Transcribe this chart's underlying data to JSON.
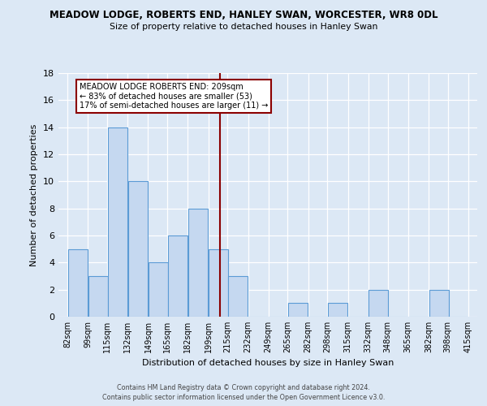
{
  "title": "MEADOW LODGE, ROBERTS END, HANLEY SWAN, WORCESTER, WR8 0DL",
  "subtitle": "Size of property relative to detached houses in Hanley Swan",
  "xlabel": "Distribution of detached houses by size in Hanley Swan",
  "ylabel": "Number of detached properties",
  "bins": [
    82,
    99,
    115,
    132,
    149,
    165,
    182,
    199,
    215,
    232,
    249,
    265,
    282,
    298,
    315,
    332,
    348,
    365,
    382,
    398,
    415
  ],
  "counts": [
    5,
    3,
    14,
    10,
    4,
    6,
    8,
    5,
    3,
    0,
    0,
    1,
    0,
    1,
    0,
    2,
    0,
    0,
    2,
    0
  ],
  "bar_color": "#c5d8f0",
  "bar_edge_color": "#5b9bd5",
  "vline_x": 209,
  "vline_color": "#8b0000",
  "annotation_box_edge_color": "#8b0000",
  "annotation_text_line1": "MEADOW LODGE ROBERTS END: 209sqm",
  "annotation_text_line2": "← 83% of detached houses are smaller (53)",
  "annotation_text_line3": "17% of semi-detached houses are larger (11) →",
  "ylim": [
    0,
    18
  ],
  "yticks": [
    0,
    2,
    4,
    6,
    8,
    10,
    12,
    14,
    16,
    18
  ],
  "tick_labels": [
    "82sqm",
    "99sqm",
    "115sqm",
    "132sqm",
    "149sqm",
    "165sqm",
    "182sqm",
    "199sqm",
    "215sqm",
    "232sqm",
    "249sqm",
    "265sqm",
    "282sqm",
    "298sqm",
    "315sqm",
    "332sqm",
    "348sqm",
    "365sqm",
    "382sqm",
    "398sqm",
    "415sqm"
  ],
  "footer_line1": "Contains HM Land Registry data © Crown copyright and database right 2024.",
  "footer_line2": "Contains public sector information licensed under the Open Government Licence v3.0.",
  "background_color": "#dce8f5",
  "plot_bg_color": "#dce8f5"
}
